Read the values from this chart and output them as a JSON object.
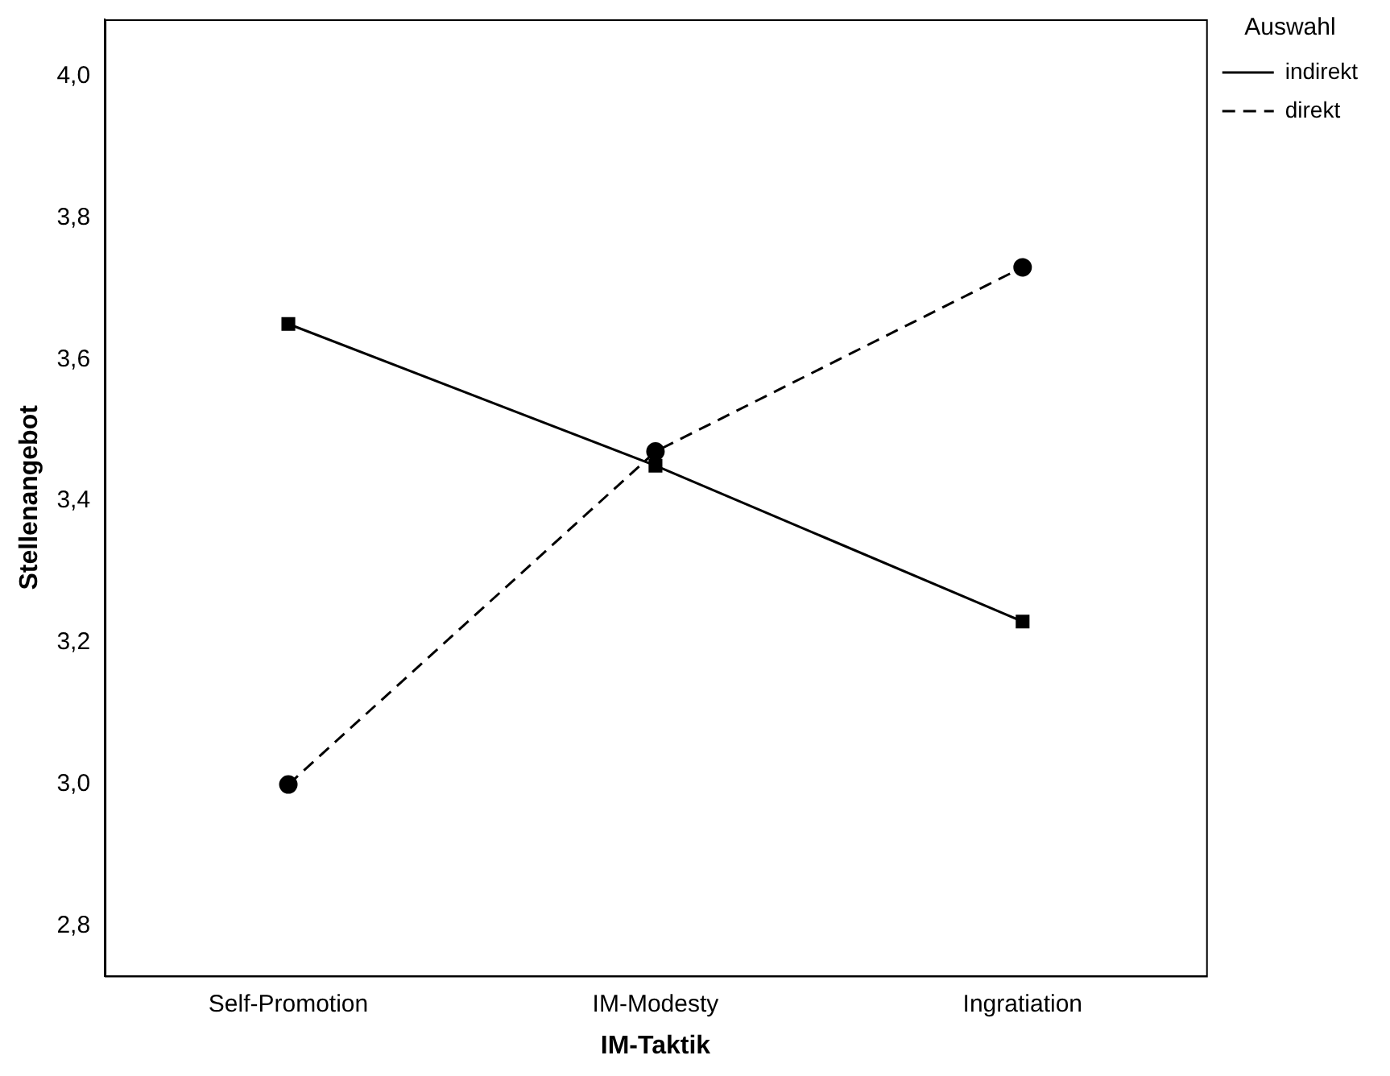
{
  "chart_data": {
    "type": "line",
    "xlabel": "IM-Taktik",
    "ylabel": "Stellenangebot",
    "legend_title": "Auswahl",
    "legend": "top right",
    "grid": false,
    "categories": [
      "Self-Promotion",
      "IM-Modesty",
      "Ingratiation"
    ],
    "ylim": [
      2.73,
      4.08
    ],
    "yticks": [
      {
        "value": 2.8,
        "label": "2,8"
      },
      {
        "value": 3.0,
        "label": "3,0"
      },
      {
        "value": 3.2,
        "label": "3,2"
      },
      {
        "value": 3.4,
        "label": "3,4"
      },
      {
        "value": 3.6,
        "label": "3,6"
      },
      {
        "value": 3.8,
        "label": "3,8"
      },
      {
        "value": 4.0,
        "label": "4,0"
      }
    ],
    "series": [
      {
        "name": "indirekt",
        "color": "#000000",
        "values": [
          3.65,
          3.45,
          3.23
        ],
        "marker": "square",
        "line_style": "solid"
      },
      {
        "name": "direkt",
        "color": "#000000",
        "values": [
          3.0,
          3.47,
          3.73
        ],
        "marker": "circle",
        "line_style": "dashed"
      }
    ]
  }
}
